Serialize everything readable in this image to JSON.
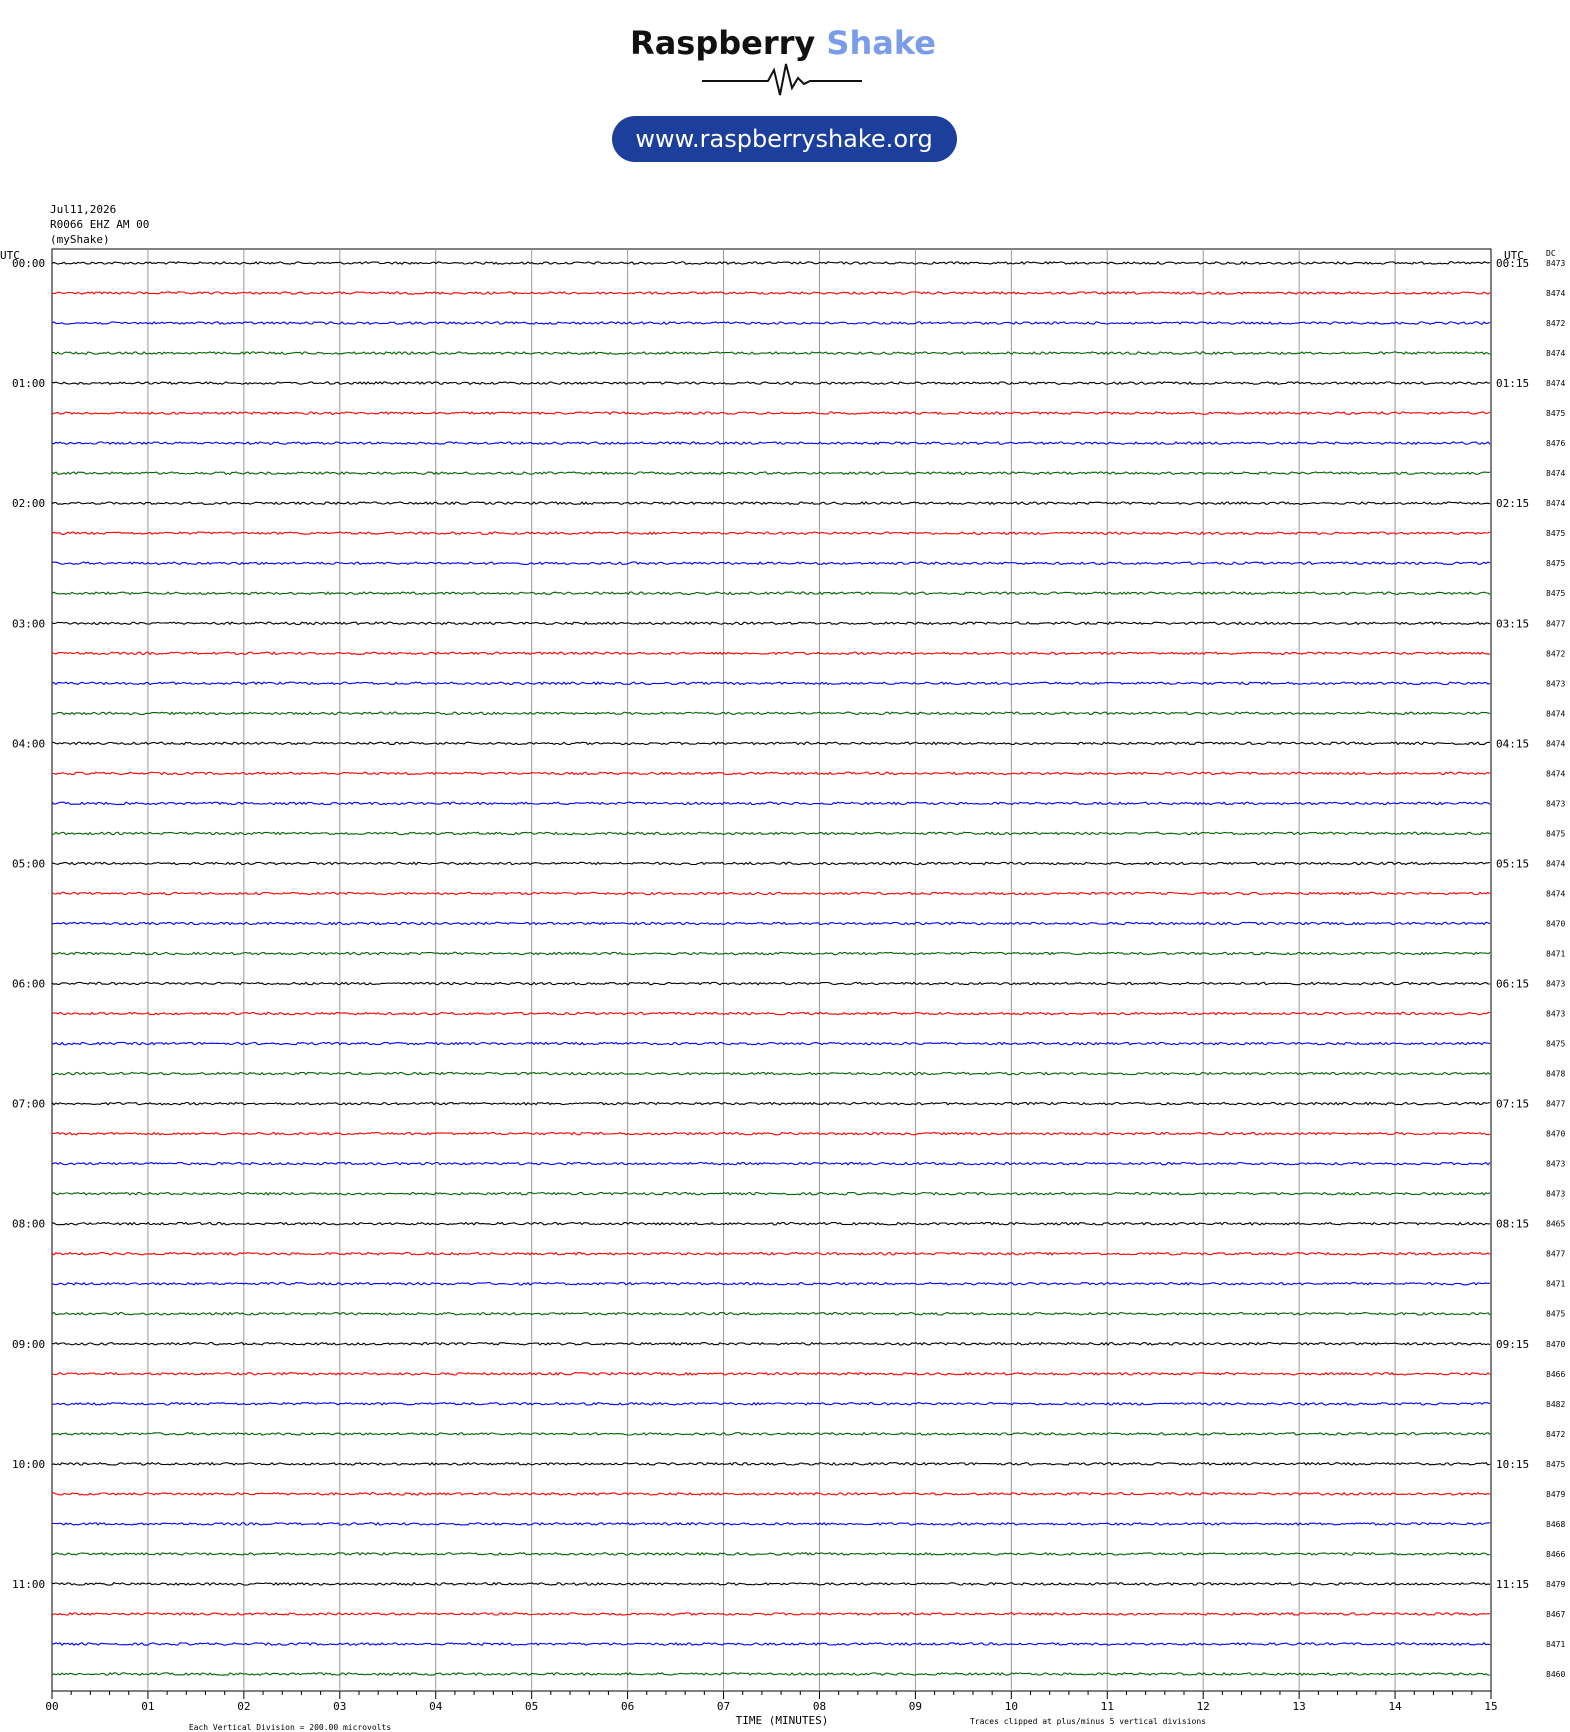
{
  "header": {
    "brand": "Raspberry",
    "brand_accent": "Shake",
    "url": "www.raspberryshake.org"
  },
  "plot": {
    "date": "Jul11,2026",
    "station": "R0066 EHZ AM 00",
    "source": "(myShake)",
    "left_axis_label": "UTC",
    "right_axis_label": "UTC",
    "dc_label": "DC",
    "row_labels_left": [
      "00:00",
      "01:00",
      "02:00",
      "03:00",
      "04:00",
      "05:00",
      "06:00",
      "07:00",
      "08:00",
      "09:00",
      "10:00",
      "11:00"
    ],
    "row_labels_right": [
      "00:15",
      "01:15",
      "02:15",
      "03:15",
      "04:15",
      "05:15",
      "06:15",
      "07:15",
      "08:15",
      "09:15",
      "10:15",
      "11:15"
    ],
    "dc_values": [
      "8473",
      "8474",
      "8472",
      "8474",
      "8474",
      "8475",
      "8476",
      "8474",
      "8474",
      "8475",
      "8475",
      "8475",
      "8477",
      "8472",
      "8473",
      "8474",
      "8474",
      "8474",
      "8473",
      "8475",
      "8474",
      "8474",
      "8470",
      "8471",
      "8473",
      "8473",
      "8475",
      "8478",
      "8477",
      "8470",
      "8473",
      "8473",
      "8465",
      "8477",
      "8471",
      "8475",
      "8470",
      "8466",
      "8482",
      "8472",
      "8475",
      "8479",
      "8468",
      "8466",
      "8479",
      "8467",
      "8471",
      "8460"
    ],
    "trace_colors": [
      "#000000",
      "#ff0000",
      "#0000ff",
      "#006400"
    ],
    "xticks": [
      "00",
      "01",
      "02",
      "03",
      "04",
      "05",
      "06",
      "07",
      "08",
      "09",
      "10",
      "11",
      "12",
      "13",
      "14",
      "15"
    ],
    "x_axis_label": "TIME (MINUTES)",
    "footer_left": "Each Vertical Division =  200.00 microvolts",
    "footer_right": "Traces clipped at plus/minus 5 vertical divisions"
  }
}
